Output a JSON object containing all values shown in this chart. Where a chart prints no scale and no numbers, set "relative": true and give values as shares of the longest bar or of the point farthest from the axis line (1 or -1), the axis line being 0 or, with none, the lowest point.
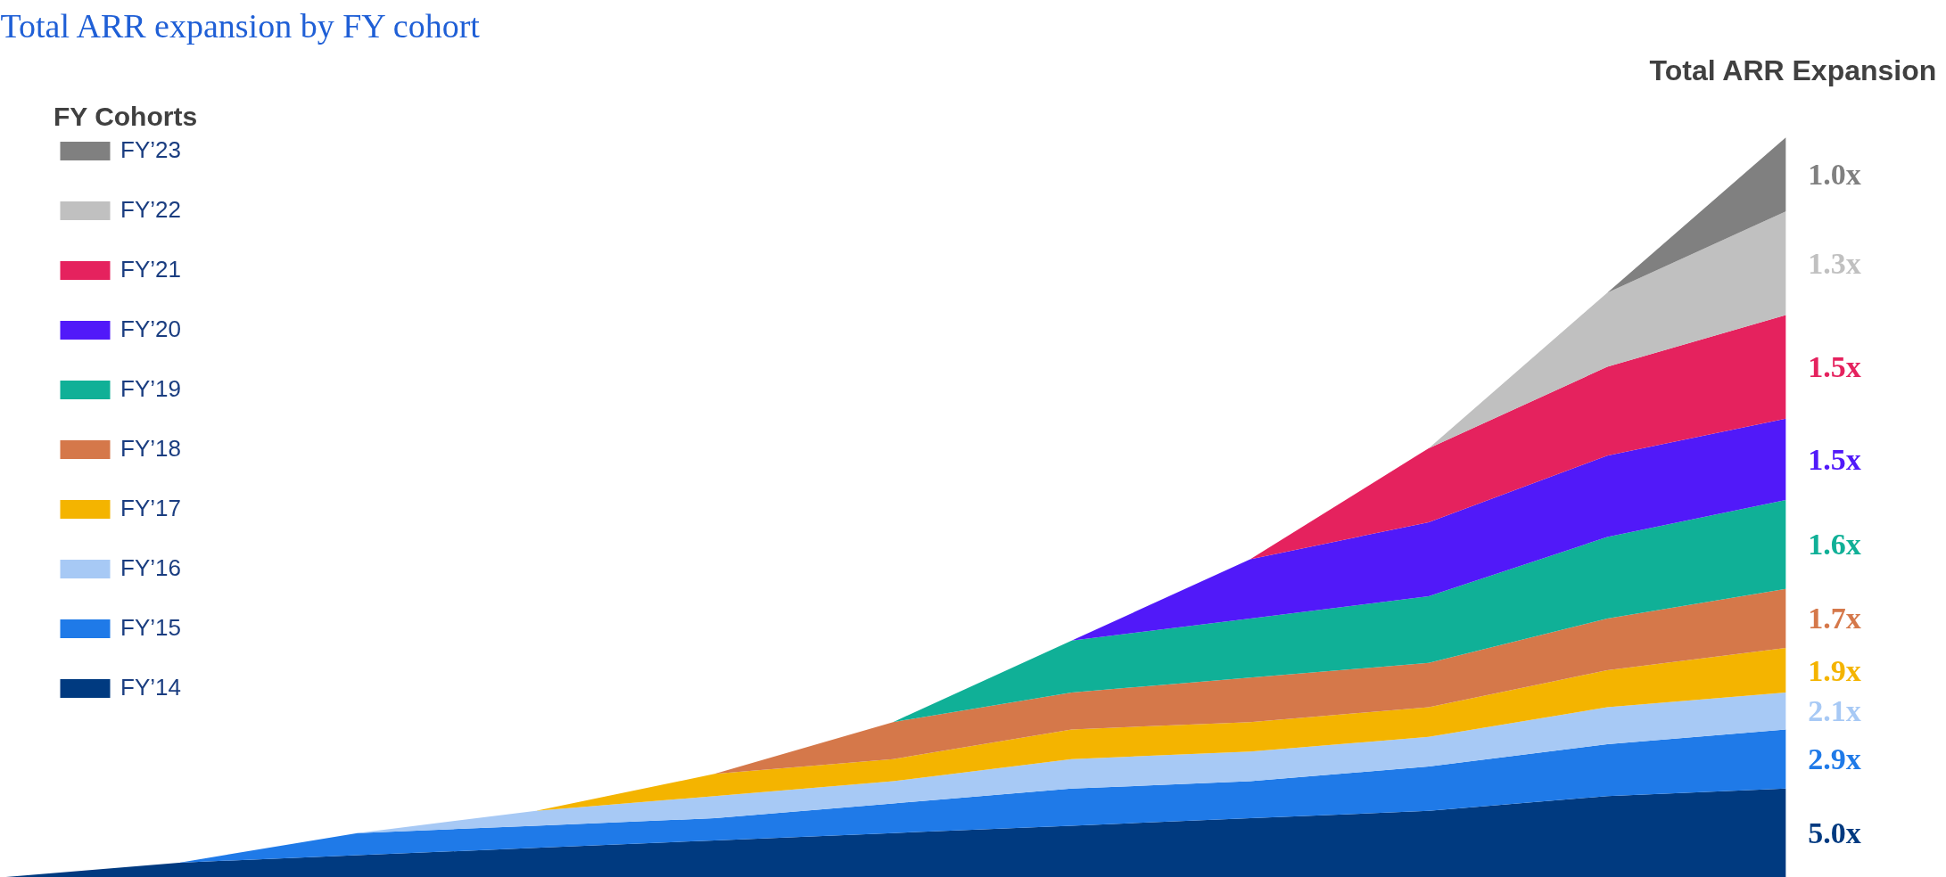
{
  "chart_data": {
    "type": "area",
    "title": "Total ARR expansion by FY cohort",
    "legend_title": "FY Cohorts",
    "annotations": [
      "Total ARR Expansion",
      "5.0x",
      "2.9x",
      "2.1x",
      "1.9x",
      "1.7x",
      "1.6x",
      "1.5x",
      "1.5x",
      "1.3x",
      "1.0x"
    ],
    "relative": true,
    "stacked": true,
    "legend": "top left",
    "grid": false,
    "categories": [
      null,
      null,
      null,
      null,
      null,
      null,
      null,
      null,
      null,
      null,
      null
    ],
    "series": [
      {
        "name": "FY’14",
        "color": "#003a80",
        "values": [
          0,
          0.02,
          0.03,
          0.04,
          0.05,
          0.06,
          0.07,
          0.08,
          0.09,
          0.11,
          0.12
        ]
      },
      {
        "name": "FY’15",
        "color": "#1f7ae8",
        "values": [
          0,
          0,
          0.03,
          0.03,
          0.03,
          0.04,
          0.05,
          0.05,
          0.06,
          0.07,
          0.08
        ]
      },
      {
        "name": "FY’16",
        "color": "#a7c9f5",
        "values": [
          0,
          0,
          0,
          0.02,
          0.03,
          0.03,
          0.04,
          0.04,
          0.04,
          0.05,
          0.05
        ]
      },
      {
        "name": "FY’17",
        "color": "#f4b400",
        "values": [
          0,
          0,
          0,
          0,
          0.03,
          0.03,
          0.04,
          0.04,
          0.04,
          0.05,
          0.06
        ]
      },
      {
        "name": "FY’18",
        "color": "#d5784a",
        "values": [
          0,
          0,
          0,
          0,
          0,
          0.05,
          0.05,
          0.06,
          0.06,
          0.07,
          0.08
        ]
      },
      {
        "name": "FY’19",
        "color": "#10b097",
        "values": [
          0,
          0,
          0,
          0,
          0,
          0,
          0.07,
          0.08,
          0.09,
          0.11,
          0.12
        ]
      },
      {
        "name": "FY’20",
        "color": "#5119f9",
        "values": [
          0,
          0,
          0,
          0,
          0,
          0,
          0,
          0.08,
          0.1,
          0.11,
          0.11
        ]
      },
      {
        "name": "FY’21",
        "color": "#e5225e",
        "values": [
          0,
          0,
          0,
          0,
          0,
          0,
          0,
          0,
          0.1,
          0.12,
          0.14
        ]
      },
      {
        "name": "FY’22",
        "color": "#c0c0c0",
        "values": [
          0,
          0,
          0,
          0,
          0,
          0,
          0,
          0,
          0,
          0.1,
          0.14
        ]
      },
      {
        "name": "FY’23",
        "color": "#808080",
        "values": [
          0,
          0,
          0,
          0,
          0,
          0,
          0,
          0,
          0,
          0,
          0.1
        ]
      }
    ]
  }
}
